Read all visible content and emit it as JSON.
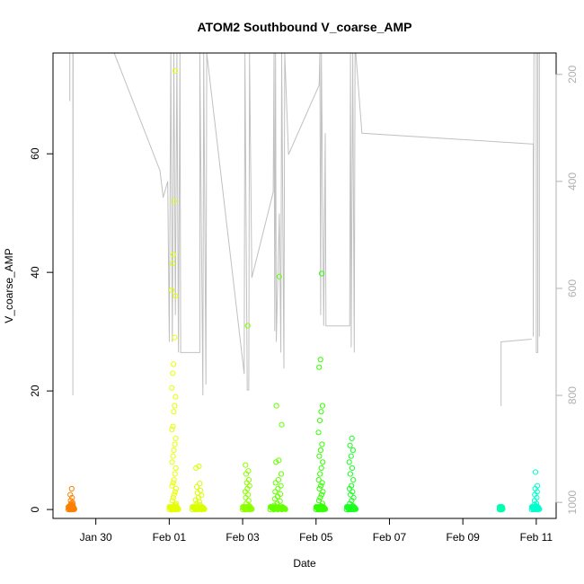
{
  "chart_data": {
    "type": "scatter",
    "title": "ATOM2 Southbound V_coarse_AMP",
    "xlabel": "Date",
    "ylabel": "V_coarse_AMP",
    "x_ticks": [
      {
        "date": "2024-01-30",
        "label": "Jan 30"
      },
      {
        "date": "2024-02-01",
        "label": "Feb 01"
      },
      {
        "date": "2024-02-03",
        "label": "Feb 03"
      },
      {
        "date": "2024-02-05",
        "label": "Feb 05"
      },
      {
        "date": "2024-02-07",
        "label": "Feb 07"
      },
      {
        "date": "2024-02-09",
        "label": "Feb 09"
      },
      {
        "date": "2024-02-11",
        "label": "Feb 11"
      }
    ],
    "xlim": [
      "2024-01-28 20:00",
      "2024-02-11 13:00"
    ],
    "ylim": [
      -1.5,
      77
    ],
    "y_ticks": [
      0,
      20,
      40,
      60
    ],
    "y2_ticks": [
      200,
      400,
      600,
      800,
      1000
    ],
    "y2lim": [
      1030,
      160
    ],
    "y2_color": "#b0b0b0",
    "grid": false,
    "series": [
      {
        "color": "#ff8000",
        "x_range": [
          "2024-01-29 06:00",
          "2024-01-29 10:00"
        ],
        "y": [
          0.0,
          0.1,
          0.2,
          0.3,
          0.4,
          0.5,
          0.6,
          0.7,
          0.8,
          0.9,
          1.0,
          1.2,
          1.5,
          2.0,
          2.5,
          3.5
        ]
      },
      {
        "color": "#e6ff00",
        "x_range": [
          "2024-02-01 00:00",
          "2024-02-01 06:00"
        ],
        "y": [
          0.0,
          0.2,
          0.4,
          0.6,
          0.8,
          1.0,
          1.5,
          2.0,
          2.5,
          3.0,
          3.5,
          4.0,
          4.5,
          5.0,
          6.0,
          7.0,
          8.0,
          9.0,
          10.0,
          11.0,
          12.0,
          13.5,
          14.0,
          16.5,
          17.5,
          19.0,
          20.5,
          23.0,
          24.5,
          29.0,
          36.0,
          37.0,
          41.5,
          43.0,
          52.0,
          74.0
        ]
      },
      {
        "color": "#d9ff00",
        "x_range": [
          "2024-02-01 15:00",
          "2024-02-01 23:00"
        ],
        "y": [
          0.0,
          0.2,
          0.4,
          0.6,
          0.8,
          1.0,
          1.3,
          1.6,
          2.0,
          2.4,
          2.8,
          3.2,
          3.8,
          4.4,
          7.0,
          7.3
        ]
      },
      {
        "color": "#8cff00",
        "x_range": [
          "2024-02-03 00:00",
          "2024-02-03 06:00"
        ],
        "y": [
          0.0,
          0.3,
          0.6,
          1.0,
          1.5,
          2.0,
          2.5,
          3.0,
          3.5,
          4.0,
          4.5,
          5.0,
          6.0,
          6.5,
          7.5,
          31.0
        ]
      },
      {
        "color": "#66ff00",
        "x_range": [
          "2024-02-03 18:00",
          "2024-02-04 04:00"
        ],
        "y": [
          0.0,
          0.2,
          0.4,
          0.7,
          1.0,
          1.4,
          1.8,
          2.2,
          2.6,
          3.0,
          3.5,
          4.0,
          4.5,
          5.0,
          6.0,
          8.0,
          8.3,
          14.3,
          17.5,
          39.3
        ]
      },
      {
        "color": "#33ff00",
        "x_range": [
          "2024-02-05 00:00",
          "2024-02-05 06:00"
        ],
        "y": [
          0.0,
          0.3,
          0.6,
          1.0,
          1.5,
          2.0,
          2.5,
          3.0,
          3.5,
          4.0,
          4.5,
          5.0,
          6.0,
          7.0,
          8.0,
          9.0,
          10.0,
          11.0,
          13.0,
          15.0,
          16.5,
          17.5,
          24.0,
          25.3,
          39.8
        ]
      },
      {
        "color": "#1aff20",
        "x_range": [
          "2024-02-05 20:00",
          "2024-02-06 02:00"
        ],
        "y": [
          0.0,
          0.3,
          0.6,
          1.0,
          1.5,
          2.0,
          2.5,
          3.0,
          3.5,
          4.0,
          5.0,
          6.0,
          7.0,
          8.0,
          9.0,
          10.0,
          10.8,
          12.0
        ]
      },
      {
        "color": "#00ffb0",
        "x_range": [
          "2024-02-10 00:00",
          "2024-02-10 02:00"
        ],
        "y": [
          0.0,
          0.2,
          0.4
        ]
      },
      {
        "color": "#00ffcc",
        "x_range": [
          "2024-02-10 21:00",
          "2024-02-11 02:00"
        ],
        "y": [
          0.0,
          0.2,
          0.4,
          0.6,
          0.8,
          1.0,
          1.5,
          2.0,
          2.5,
          3.0,
          3.5,
          4.0,
          6.3
        ]
      }
    ],
    "secondary_line": {
      "color": "#c0c0c0",
      "points": [
        [
          "2024-01-29 07:00",
          250
        ],
        [
          "2024-01-29 07:00",
          160
        ],
        [
          "2024-01-29 09:00",
          160
        ],
        [
          "2024-01-29 09:00",
          800
        ],
        [
          "2024-01-29 09:10",
          160
        ],
        [
          "2024-01-29 10:00",
          160
        ],
        [
          "2024-01-30 12:00",
          160
        ],
        [
          "2024-01-31 18:00",
          380
        ],
        [
          "2024-01-31 20:00",
          430
        ],
        [
          "2024-01-31 23:00",
          400
        ],
        [
          "2024-02-01 00:00",
          700
        ],
        [
          "2024-02-01 01:00",
          160
        ],
        [
          "2024-02-01 02:00",
          700
        ],
        [
          "2024-02-01 03:00",
          160
        ],
        [
          "2024-02-01 04:00",
          650
        ],
        [
          "2024-02-01 05:00",
          160
        ],
        [
          "2024-02-01 06:00",
          720
        ],
        [
          "2024-02-01 07:00",
          160
        ],
        [
          "2024-02-01 07:30",
          720
        ],
        [
          "2024-02-01 20:00",
          720
        ],
        [
          "2024-02-01 20:00",
          160
        ],
        [
          "2024-02-01 22:00",
          800
        ],
        [
          "2024-02-01 22:30",
          160
        ],
        [
          "2024-02-02 00:00",
          780
        ],
        [
          "2024-02-02 00:30",
          160
        ],
        [
          "2024-02-03 01:00",
          760
        ],
        [
          "2024-02-03 01:30",
          160
        ],
        [
          "2024-02-03 03:00",
          790
        ],
        [
          "2024-02-03 04:00",
          790
        ],
        [
          "2024-02-03 04:30",
          160
        ],
        [
          "2024-02-03 06:00",
          580
        ],
        [
          "2024-02-03 20:00",
          420
        ],
        [
          "2024-02-03 20:30",
          160
        ],
        [
          "2024-02-03 21:00",
          680
        ],
        [
          "2024-02-03 21:30",
          160
        ],
        [
          "2024-02-03 22:00",
          700
        ],
        [
          "2024-02-04 00:00",
          460
        ],
        [
          "2024-02-04 01:00",
          720
        ],
        [
          "2024-02-04 01:30",
          160
        ],
        [
          "2024-02-04 03:00",
          750
        ],
        [
          "2024-02-04 03:30",
          160
        ],
        [
          "2024-02-04 06:00",
          350
        ],
        [
          "2024-02-05 02:00",
          220
        ],
        [
          "2024-02-05 02:30",
          160
        ],
        [
          "2024-02-05 03:00",
          650
        ],
        [
          "2024-02-05 03:30",
          160
        ],
        [
          "2024-02-05 05:00",
          670
        ],
        [
          "2024-02-05 06:00",
          310
        ],
        [
          "2024-02-05 06:30",
          670
        ],
        [
          "2024-02-05 22:00",
          670
        ],
        [
          "2024-02-05 22:30",
          160
        ],
        [
          "2024-02-05 23:00",
          710
        ],
        [
          "2024-02-06 00:00",
          160
        ],
        [
          "2024-02-06 01:00",
          720
        ],
        [
          "2024-02-06 01:30",
          160
        ],
        [
          "2024-02-06 02:00",
          160
        ],
        [
          "2024-02-06 06:00",
          310
        ],
        [
          "2024-02-10 21:00",
          330
        ],
        [
          "2024-02-10 22:00",
          330
        ],
        [
          "2024-02-10 22:00",
          690
        ],
        [
          "2024-02-10 22:30",
          160
        ],
        [
          "2024-02-11 00:00",
          160
        ],
        [
          "2024-02-11 00:00",
          720
        ],
        [
          "2024-02-11 01:00",
          720
        ],
        [
          "2024-02-11 01:00",
          160
        ]
      ],
      "extra_segments": [
        [
          [
            "2024-02-10 01:00",
            820
          ],
          [
            "2024-02-10 01:00",
            700
          ],
          [
            "2024-02-10 21:00",
            695
          ]
        ],
        [
          [
            "2024-02-11 02:00",
            160
          ],
          [
            "2024-02-11 02:00",
            690
          ]
        ]
      ]
    }
  }
}
